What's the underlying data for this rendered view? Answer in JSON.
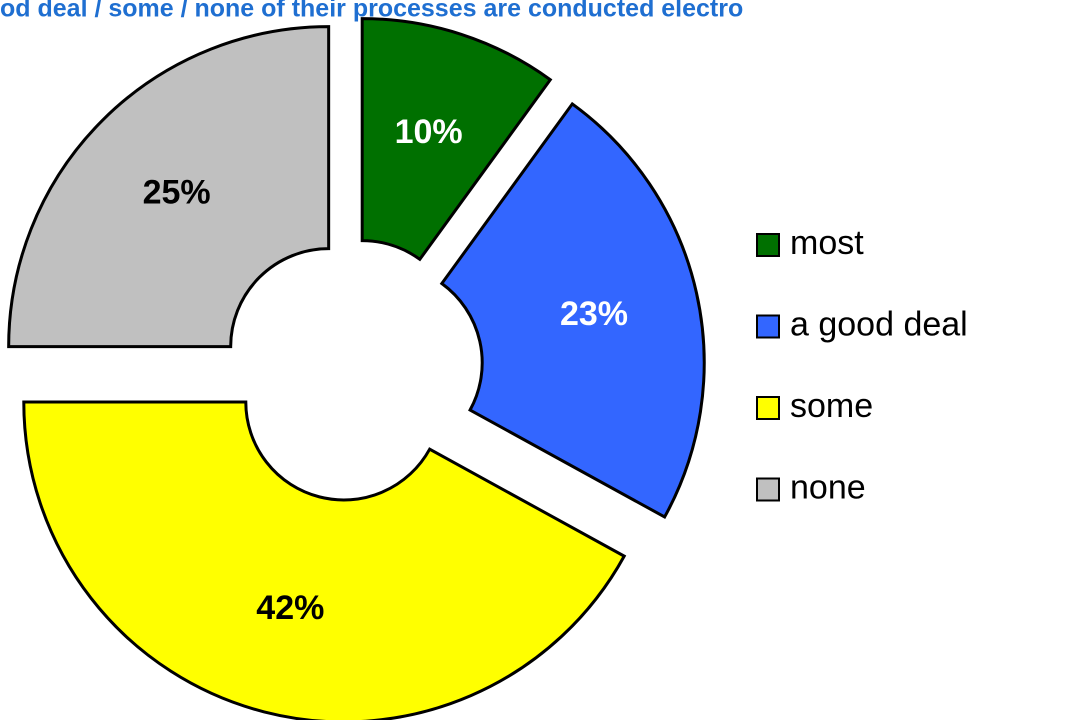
{
  "chart_data": {
    "type": "donut",
    "title": "od deal / some / none of their processes are conducted electro",
    "categories": [
      "most",
      "a good deal",
      "some",
      "none"
    ],
    "values": [
      10,
      23,
      42,
      25
    ],
    "value_labels": [
      "10%",
      "23%",
      "42%",
      "25%"
    ],
    "colors": [
      "#007000",
      "#3366ff",
      "#ffff00",
      "#c0c0c0"
    ],
    "legend": "right"
  }
}
